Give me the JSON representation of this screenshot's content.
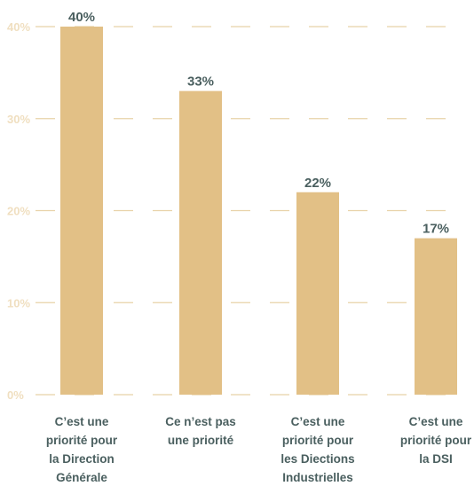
{
  "chart_data": {
    "type": "bar",
    "categories": [
      [
        "C’est une",
        "priorité pour",
        "la Direction",
        "Générale"
      ],
      [
        "Ce n’est pas",
        "une priorité"
      ],
      [
        "C’est une",
        "priorité pour",
        "les Diections",
        "Industrielles"
      ],
      [
        "C’est une",
        "priorité pour",
        "la DSI"
      ]
    ],
    "values": [
      40,
      33,
      22,
      17
    ],
    "data_labels": [
      "40%",
      "33%",
      "22%",
      "17%"
    ],
    "ylim": [
      0,
      40
    ],
    "yticks": [
      0,
      10,
      20,
      30,
      40
    ],
    "ytick_labels": [
      "0%",
      "10%",
      "20%",
      "30%",
      "40%"
    ],
    "title": "",
    "xlabel": "",
    "ylabel": "",
    "grid": true,
    "grid_style": "dashed",
    "legend": "none"
  },
  "colors": {
    "bar": "#e2c086",
    "grid": "#e8d2a8",
    "tick_label": "#f0dfc0",
    "data_label": "#4a5f5f",
    "category_label": "#4a5f5f"
  }
}
